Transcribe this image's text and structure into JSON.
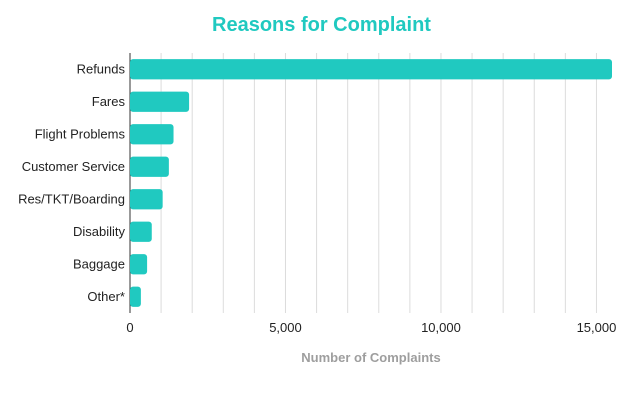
{
  "colors": {
    "accent": "#20c9c0",
    "gridline": "#dcdcdc",
    "axis": "#333333",
    "text": "#222222",
    "xlabel": "#9e9e9e"
  },
  "chart_data": {
    "type": "bar",
    "orientation": "horizontal",
    "title": "Reasons for Complaint",
    "xlabel": "Number of Complaints",
    "ylabel": "",
    "categories": [
      "Refunds",
      "Fares",
      "Flight Problems",
      "Customer Service",
      "Res/TKT/Boarding",
      "Disability",
      "Baggage",
      "Other*"
    ],
    "values": [
      15500,
      1900,
      1400,
      1250,
      1050,
      700,
      550,
      350
    ],
    "xlim": [
      0,
      15500
    ],
    "xticks": [
      0,
      5000,
      10000,
      15000
    ],
    "xtick_labels": [
      "0",
      "5,000",
      "10,000",
      "15,000"
    ],
    "grid": true,
    "legend": "none"
  }
}
